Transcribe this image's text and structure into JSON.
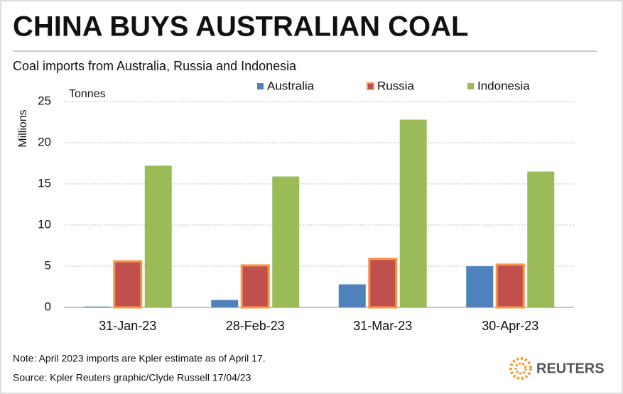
{
  "chart_data": {
    "type": "bar",
    "title": "CHINA BUYS AUSTRALIAN COAL",
    "subtitle": "Coal imports from Australia, Russia and Indonesia",
    "unit_label": "Tonnes",
    "y_label": "Millions",
    "categories": [
      "31-Jan-23",
      "28-Feb-23",
      "31-Mar-23",
      "30-Apr-23"
    ],
    "series": [
      {
        "name": "Australia",
        "color": "#4f81bd",
        "values": [
          0.1,
          0.9,
          2.8,
          5.0
        ]
      },
      {
        "name": "Russia",
        "color": "#c0504d",
        "edgecolor": "#f79646",
        "values": [
          5.6,
          5.1,
          5.9,
          5.2
        ]
      },
      {
        "name": "Indonesia",
        "color": "#9bbb59",
        "values": [
          17.2,
          15.9,
          22.8,
          16.5
        ]
      }
    ],
    "ylim": [
      0,
      25
    ],
    "yticks": [
      0,
      5,
      10,
      15,
      20,
      25
    ],
    "grid": true,
    "note": "Note: April 2023 imports are Kpler estimate as of April 17.",
    "source": "Source: Kpler    Reuters graphic/Clyde Russell 17/04/23",
    "brand": "REUTERS"
  }
}
